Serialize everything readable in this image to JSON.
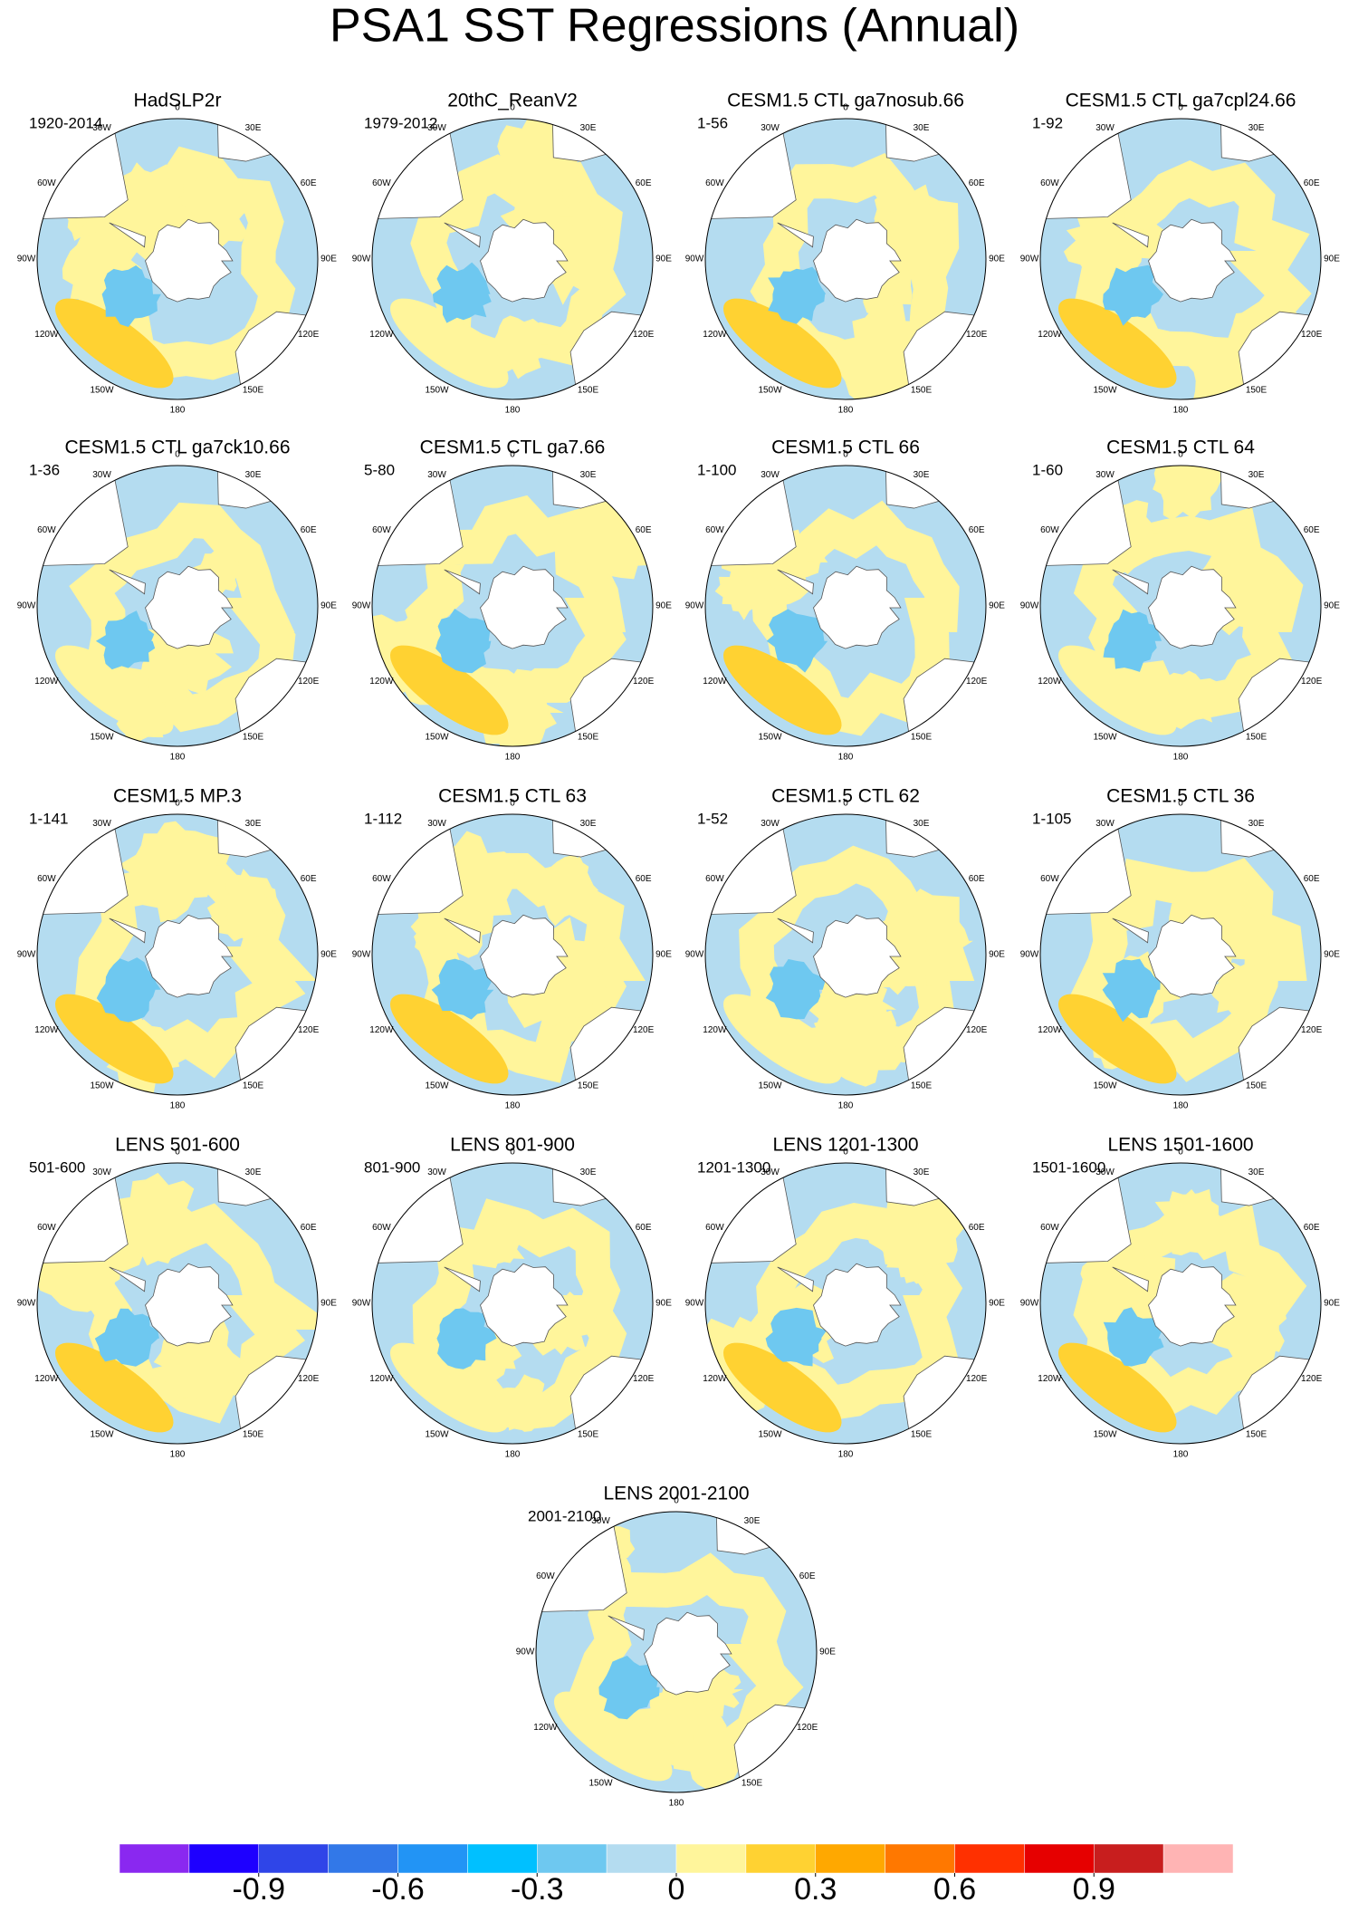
{
  "title": "PSA1 SST Regressions (Annual)",
  "lon_labels": [
    "0",
    "30E",
    "60E",
    "90E",
    "120E",
    "150E",
    "180",
    "150W",
    "120W",
    "90W",
    "60W",
    "30W"
  ],
  "panels": [
    {
      "title": "HadSLP2r",
      "period": "1920-2014"
    },
    {
      "title": "20thC_ReanV2",
      "period": "1979-2012"
    },
    {
      "title": "CESM1.5 CTL ga7nosub.66",
      "period": "1-56"
    },
    {
      "title": "CESM1.5 CTL ga7cpl24.66",
      "period": "1-92"
    },
    {
      "title": "CESM1.5 CTL ga7ck10.66",
      "period": "1-36"
    },
    {
      "title": "CESM1.5 CTL ga7.66",
      "period": "5-80"
    },
    {
      "title": "CESM1.5 CTL 66",
      "period": "1-100"
    },
    {
      "title": "CESM1.5 CTL 64",
      "period": "1-60"
    },
    {
      "title": "CESM1.5 MP.3",
      "period": "1-141"
    },
    {
      "title": "CESM1.5 CTL 63",
      "period": "1-112"
    },
    {
      "title": "CESM1.5 CTL 62",
      "period": "1-52"
    },
    {
      "title": "CESM1.5 CTL 36",
      "period": "1-105"
    },
    {
      "title": "LENS 501-600",
      "period": "501-600"
    },
    {
      "title": "LENS 801-900",
      "period": "801-900"
    },
    {
      "title": "LENS 1201-1300",
      "period": "1201-1300"
    },
    {
      "title": "LENS 1501-1600",
      "period": "1501-1600"
    },
    {
      "title": "LENS 2001-2100",
      "period": "2001-2100"
    }
  ],
  "colorbar": {
    "lim": [
      -1.2,
      1.2
    ],
    "ticks": [
      -0.9,
      -0.6,
      -0.3,
      0,
      0.3,
      0.6,
      0.9
    ],
    "colors": [
      "#8a28f0",
      "#1e00ff",
      "#2f45e8",
      "#3278e8",
      "#2294f5",
      "#00c0ff",
      "#6ec8f0",
      "#b4dcf0",
      "#fff59b",
      "#ffd232",
      "#ffa800",
      "#ff7800",
      "#ff3000",
      "#e60000",
      "#c81e1e",
      "#ffb4b4"
    ]
  }
}
